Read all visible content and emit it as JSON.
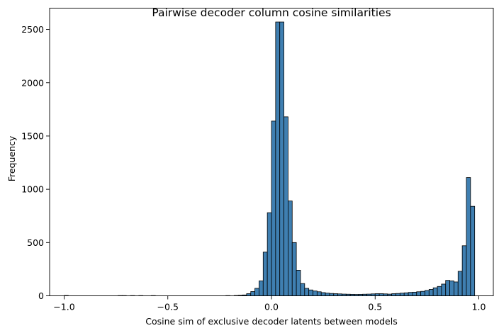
{
  "chart_data": {
    "type": "bar",
    "title": "Pairwise decoder column cosine similarities",
    "xlabel": "Cosine sim of exclusive decoder latents between models",
    "ylabel": "Frequency",
    "xlim": [
      -1.07,
      1.07
    ],
    "ylim": [
      0,
      2700
    ],
    "xticks": [
      -1.0,
      -0.5,
      0.0,
      0.5,
      1.0
    ],
    "xtick_labels": [
      "−1.0",
      "−0.5",
      "0.0",
      "0.5",
      "1.0"
    ],
    "yticks": [
      0,
      500,
      1000,
      1500,
      2000,
      2500
    ],
    "ytick_labels": [
      "0",
      "500",
      "1000",
      "1500",
      "2000",
      "2500"
    ],
    "bin_width": 0.02,
    "bin_starts": [
      -1.0,
      -0.98,
      -0.96,
      -0.94,
      -0.92,
      -0.9,
      -0.88,
      -0.86,
      -0.84,
      -0.82,
      -0.8,
      -0.78,
      -0.76,
      -0.74,
      -0.72,
      -0.7,
      -0.68,
      -0.66,
      -0.64,
      -0.62,
      -0.6,
      -0.58,
      -0.56,
      -0.54,
      -0.52,
      -0.5,
      -0.48,
      -0.46,
      -0.44,
      -0.42,
      -0.4,
      -0.38,
      -0.36,
      -0.34,
      -0.32,
      -0.3,
      -0.28,
      -0.26,
      -0.24,
      -0.22,
      -0.2,
      -0.18,
      -0.16,
      -0.14,
      -0.12,
      -0.1,
      -0.08,
      -0.06,
      -0.04,
      -0.02,
      0.0,
      0.02,
      0.04,
      0.06,
      0.08,
      0.1,
      0.12,
      0.14,
      0.16,
      0.18,
      0.2,
      0.22,
      0.24,
      0.26,
      0.28,
      0.3,
      0.32,
      0.34,
      0.36,
      0.38,
      0.4,
      0.42,
      0.44,
      0.46,
      0.48,
      0.5,
      0.52,
      0.54,
      0.56,
      0.58,
      0.6,
      0.62,
      0.64,
      0.66,
      0.68,
      0.7,
      0.72,
      0.74,
      0.76,
      0.78,
      0.8,
      0.82,
      0.84,
      0.86,
      0.88,
      0.9,
      0.92,
      0.94,
      0.96,
      0.98
    ],
    "counts": [
      3,
      0,
      0,
      0,
      0,
      0,
      0,
      0,
      0,
      0,
      0,
      0,
      0,
      2,
      2,
      0,
      2,
      0,
      2,
      0,
      0,
      2,
      0,
      0,
      0,
      0,
      0,
      0,
      0,
      0,
      0,
      0,
      0,
      0,
      0,
      0,
      0,
      0,
      0,
      2,
      0,
      3,
      5,
      8,
      20,
      40,
      70,
      140,
      410,
      780,
      1640,
      2570,
      2570,
      1680,
      890,
      500,
      240,
      115,
      70,
      55,
      45,
      38,
      30,
      25,
      22,
      20,
      18,
      16,
      15,
      14,
      13,
      14,
      15,
      16,
      18,
      20,
      20,
      18,
      16,
      20,
      22,
      25,
      28,
      32,
      34,
      38,
      42,
      50,
      60,
      75,
      88,
      110,
      145,
      140,
      130,
      230,
      470,
      1110,
      840,
      0
    ],
    "bar_color": "#3f7fb1"
  }
}
